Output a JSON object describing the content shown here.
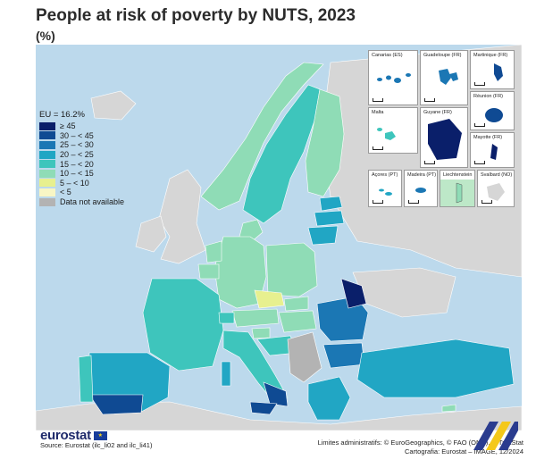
{
  "title": "People at risk of poverty by NUTS, 2023",
  "subtitle": "(%)",
  "legend": {
    "title": "EU = 16.2%",
    "items": [
      {
        "label": "≥ 45",
        "color": "#0a1f6a"
      },
      {
        "label": "30 – < 45",
        "color": "#0f4a93"
      },
      {
        "label": "25 – < 30",
        "color": "#1b77b4"
      },
      {
        "label": "20 – < 25",
        "color": "#21a6c4"
      },
      {
        "label": "15 – < 20",
        "color": "#3ec5bc"
      },
      {
        "label": "10 – < 15",
        "color": "#8fdcb6"
      },
      {
        "label": "5 – < 10",
        "color": "#e7f08f"
      },
      {
        "label": "< 5",
        "color": "#f8f6c5"
      },
      {
        "label": "Data not available",
        "color": "#b3b3b3"
      }
    ]
  },
  "insets": {
    "canarias": "Canarias (ES)",
    "guadeloupe": "Guadeloupe (FR)",
    "martinique": "Martinique (FR)",
    "reunion": "Réunion (FR)",
    "malta": "Malta",
    "guyane": "Guyane (FR)",
    "mayotte": "Mayotte (FR)",
    "acores": "Açores (PT)",
    "madeira": "Madeira (PT)",
    "liechtenstein": "Liechtenstein",
    "svalbard": "Svalbard (NO)"
  },
  "logo": "eurostat",
  "source": "Source: Eurostat (ilc_li02 and ilc_li41)",
  "credits": {
    "line1": "Limites administratifs: © EuroGeographics, © FAO (ONU), © TurkStat",
    "line2": "Cartografia: Eurostat – IMAGE, 12/2024"
  },
  "colors": {
    "sea": "#bcd9ec",
    "non_eu_land": "#d6d6d6",
    "no_data": "#b3b3b3",
    "corner_navy": "#2a3c8f",
    "corner_yellow": "#f4c81a"
  }
}
